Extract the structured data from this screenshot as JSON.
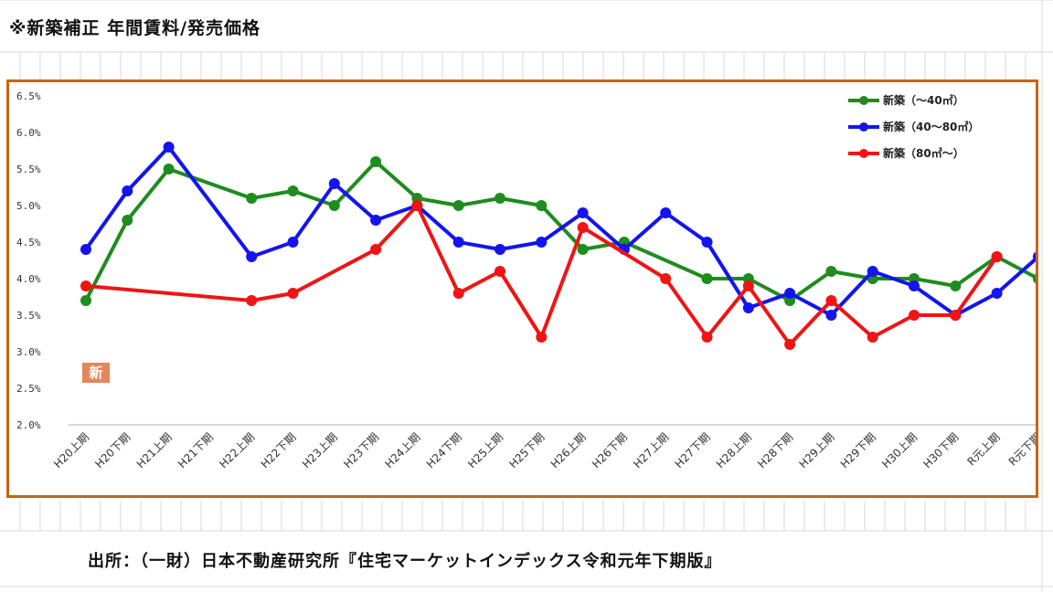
{
  "page": {
    "title": "※新築補正 年間賃料/発売価格",
    "badge": "新",
    "source": "出所：（一財）日本不動産研究所『住宅マーケットインデックス令和元年下期版』"
  },
  "chart_data": {
    "type": "line",
    "categories": [
      "H20上期",
      "H20下期",
      "H21上期",
      "H21下期",
      "H22上期",
      "H22下期",
      "H23上期",
      "H23下期",
      "H24上期",
      "H24下期",
      "H25上期",
      "H25下期",
      "H26上期",
      "H26下期",
      "H27上期",
      "H27下期",
      "H28上期",
      "H28下期",
      "H29上期",
      "H29下期",
      "H30上期",
      "H30下期",
      "R元上期",
      "R元下期"
    ],
    "ylim": [
      2.0,
      6.5
    ],
    "yticks": [
      "2.0%",
      "2.5%",
      "3.0%",
      "3.5%",
      "4.0%",
      "4.5%",
      "5.0%",
      "5.5%",
      "6.0%",
      "6.5%"
    ],
    "legend_position": "top-right",
    "grid": false,
    "series": [
      {
        "name": "新築（～40㎡）",
        "color": "#1e8c1e",
        "values": [
          3.7,
          4.8,
          5.5,
          null,
          5.1,
          5.2,
          5.0,
          5.6,
          5.1,
          5.0,
          5.1,
          5.0,
          4.4,
          4.5,
          null,
          4.0,
          4.0,
          3.7,
          4.1,
          4.0,
          4.0,
          3.9,
          4.3,
          4.0
        ]
      },
      {
        "name": "新築（40～80㎡）",
        "color": "#1414f0",
        "values": [
          4.4,
          5.2,
          5.8,
          null,
          4.3,
          4.5,
          5.3,
          4.8,
          5.0,
          4.5,
          4.4,
          4.5,
          4.9,
          4.4,
          4.9,
          4.5,
          3.6,
          3.8,
          3.5,
          4.1,
          3.9,
          3.5,
          3.8,
          4.3
        ]
      },
      {
        "name": "新築（80㎡～）",
        "color": "#f01414",
        "values": [
          3.9,
          null,
          null,
          null,
          3.7,
          3.8,
          null,
          4.4,
          5.0,
          3.8,
          4.1,
          3.2,
          4.7,
          null,
          4.0,
          3.2,
          3.9,
          3.1,
          3.7,
          3.2,
          3.5,
          3.5,
          4.3,
          null
        ]
      }
    ]
  }
}
